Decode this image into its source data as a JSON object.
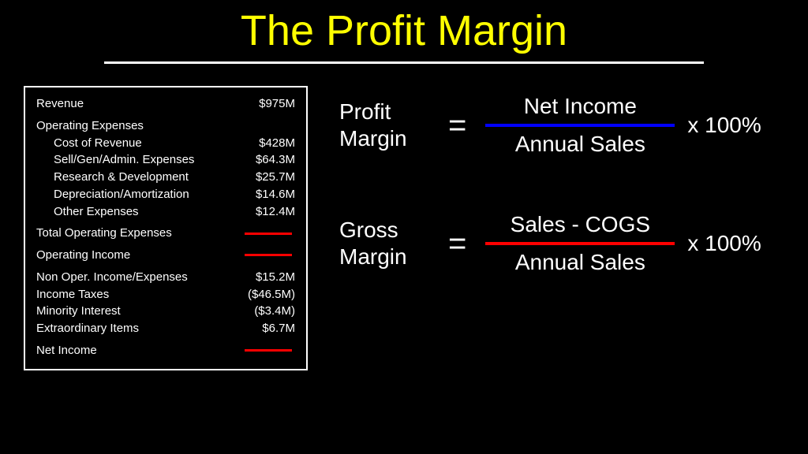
{
  "title": "The Profit Margin",
  "colors": {
    "background": "#000000",
    "title": "#ffff00",
    "text": "#ffffff",
    "blank_line": "#ff0000",
    "formula1_fraction_line": "#0000ff",
    "formula2_fraction_line": "#ff0000"
  },
  "table": {
    "revenue": {
      "label": "Revenue",
      "value": "$975M"
    },
    "operating_expenses_header": "Operating Expenses",
    "operating_items": [
      {
        "label": "Cost of Revenue",
        "value": "$428M"
      },
      {
        "label": "Sell/Gen/Admin. Expenses",
        "value": "$64.3M"
      },
      {
        "label": "Research & Development",
        "value": "$25.7M"
      },
      {
        "label": "Depreciation/Amortization",
        "value": "$14.6M"
      },
      {
        "label": "Other Expenses",
        "value": "$12.4M"
      }
    ],
    "total_operating_expenses": {
      "label": "Total Operating Expenses"
    },
    "operating_income": {
      "label": "Operating Income"
    },
    "below_items": [
      {
        "label": "Non Oper. Income/Expenses",
        "value": "$15.2M"
      },
      {
        "label": "Income Taxes",
        "value": "($46.5M)"
      },
      {
        "label": "Minority Interest",
        "value": "($3.4M)"
      },
      {
        "label": "Extraordinary Items",
        "value": "$6.7M"
      }
    ],
    "net_income": {
      "label": "Net Income"
    }
  },
  "formula1": {
    "label_line1": "Profit",
    "label_line2": "Margin",
    "numerator": "Net Income",
    "denominator": "Annual Sales",
    "suffix": "x 100%"
  },
  "formula2": {
    "label_line1": "Gross",
    "label_line2": "Margin",
    "numerator": "Sales - COGS",
    "denominator": "Annual Sales",
    "suffix": "x 100%"
  }
}
